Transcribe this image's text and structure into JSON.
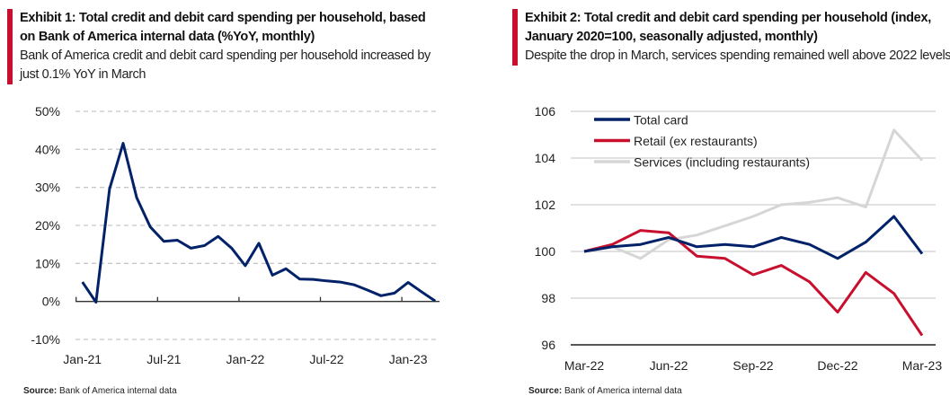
{
  "exhibit1": {
    "title": "Exhibit 1: Total credit and debit card spending per household, based on Bank  of America internal data (%YoY, monthly)",
    "subtitle": "Bank of America credit and debit card spending per household increased by just 0.1% YoY in March",
    "source_label": "Source:",
    "source_text": "Bank of America internal data"
  },
  "exhibit2": {
    "title": "Exhibit 2: Total credit and debit card spending per household (index, January  2020=100,  seasonally adjusted, monthly)",
    "subtitle": "Despite the drop in March, services spending remained well above 2022 levels",
    "source_label": "Source:",
    "source_text": "Bank of America internal data"
  },
  "chart_data": [
    {
      "type": "line",
      "title": "",
      "ylim": [
        -10,
        50
      ],
      "yticks": [
        "50%",
        "40%",
        "30%",
        "20%",
        "10%",
        "0%",
        "-10%"
      ],
      "ytick_values": [
        50,
        40,
        30,
        20,
        10,
        0,
        -10
      ],
      "grid": "dashed horizontal",
      "x": [
        "Jan-21",
        "Feb-21",
        "Mar-21",
        "Apr-21",
        "May-21",
        "Jun-21",
        "Jul-21",
        "Aug-21",
        "Sep-21",
        "Oct-21",
        "Nov-21",
        "Dec-21",
        "Jan-22",
        "Feb-22",
        "Mar-22",
        "Apr-22",
        "May-22",
        "Jun-22",
        "Jul-22",
        "Aug-22",
        "Sep-22",
        "Oct-22",
        "Nov-22",
        "Dec-22",
        "Jan-23",
        "Feb-23",
        "Mar-23"
      ],
      "xticks": [
        "Jan-21",
        "Jul-21",
        "Jan-22",
        "Jul-22",
        "Jan-23"
      ],
      "series": [
        {
          "values": [
            5.1,
            -0.2,
            29.6,
            41.6,
            27.3,
            19.6,
            15.8,
            16.1,
            14.0,
            14.7,
            17.1,
            14.0,
            9.4,
            15.3,
            6.9,
            8.6,
            5.9,
            5.8,
            5.4,
            5.1,
            4.4,
            3.0,
            1.5,
            2.2,
            5.0,
            2.5,
            0.1
          ],
          "color": "#012169"
        }
      ]
    },
    {
      "type": "line",
      "title": "",
      "ylim": [
        96,
        106
      ],
      "yticks": [
        "106",
        "104",
        "102",
        "100",
        "98",
        "96"
      ],
      "ytick_values": [
        106,
        104,
        102,
        100,
        98,
        96
      ],
      "grid": "solid horizontal",
      "legend": "top-left",
      "x": [
        "Mar-22",
        "Apr-22",
        "May-22",
        "Jun-22",
        "Jul-22",
        "Aug-22",
        "Sep-22",
        "Oct-22",
        "Nov-22",
        "Dec-22",
        "Jan-23",
        "Feb-23",
        "Mar-23"
      ],
      "xticks": [
        "Mar-22",
        "Jun-22",
        "Sep-22",
        "Dec-22",
        "Mar-23"
      ],
      "series": [
        {
          "name": "Total card",
          "color": "#012169",
          "values": [
            100,
            100.2,
            100.3,
            100.6,
            100.2,
            100.3,
            100.2,
            100.6,
            100.3,
            99.7,
            100.4,
            101.5,
            99.9
          ]
        },
        {
          "name": "Retail (ex restaurants)",
          "color": "#c8102e",
          "values": [
            100,
            100.3,
            100.9,
            100.8,
            99.8,
            99.7,
            99.0,
            99.4,
            98.7,
            97.4,
            99.1,
            98.2,
            96.4
          ]
        },
        {
          "name": "Services (including restaurants)",
          "color": "#d6d6d6",
          "values": [
            100,
            100.2,
            99.7,
            100.5,
            100.7,
            101.1,
            101.5,
            102.0,
            102.1,
            102.3,
            101.9,
            105.2,
            103.9
          ]
        }
      ]
    }
  ]
}
